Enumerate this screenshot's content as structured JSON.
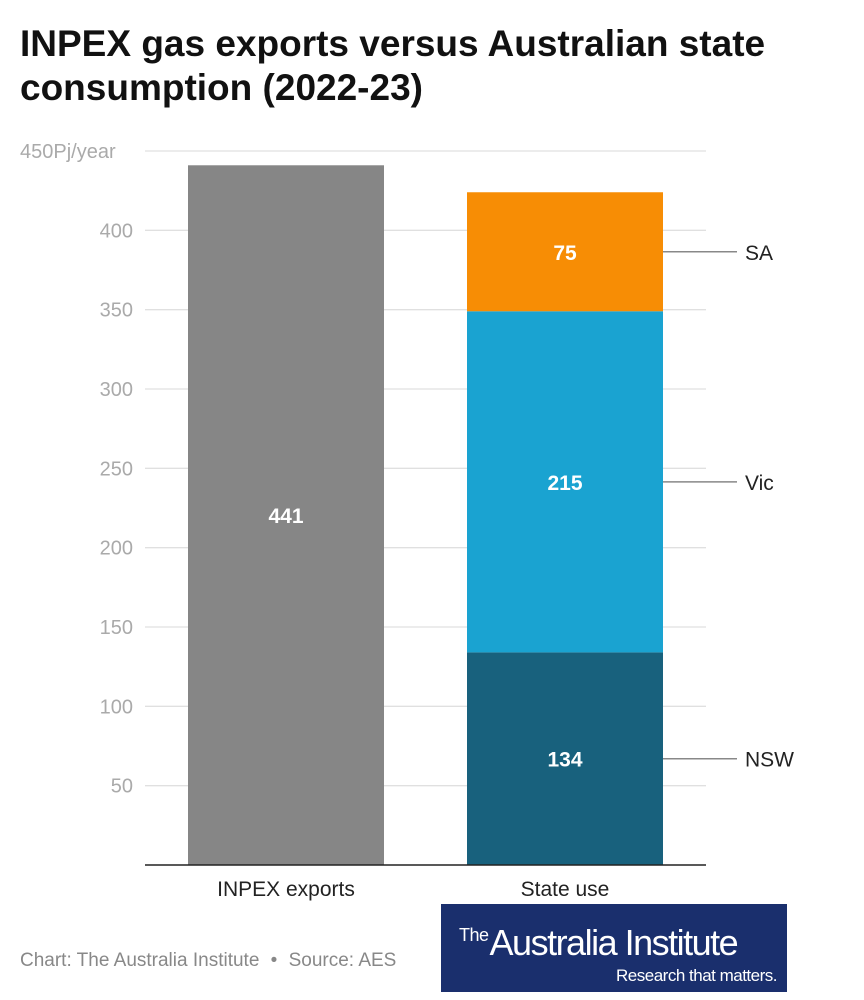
{
  "title": "INPEX gas exports versus Australian state consumption (2022-23)",
  "footer": {
    "chart_credit": "Chart: The Australia Institute",
    "separator": "•",
    "source": "Source: AES"
  },
  "logo": {
    "the": "The",
    "name": "Australia Institute",
    "tagline": "Research that matters.",
    "background_color": "#1a2f6d"
  },
  "chart_data": {
    "type": "bar",
    "stacked": true,
    "title": "INPEX gas exports versus Australian state consumption (2022-23)",
    "categories": [
      "INPEX exports",
      "State use"
    ],
    "ylim": [
      0,
      450
    ],
    "y_ticks": [
      50,
      100,
      150,
      200,
      250,
      300,
      350,
      400,
      450
    ],
    "y_tick_labels": [
      "50",
      "100",
      "150",
      "200",
      "250",
      "300",
      "350",
      "400",
      "450Pj/year"
    ],
    "grid": true,
    "series": [
      {
        "name": "",
        "category": "INPEX exports",
        "value": 441,
        "label": "441",
        "color": "#868686"
      },
      {
        "name": "NSW",
        "category": "State use",
        "value": 134,
        "label": "134",
        "color": "#18617d"
      },
      {
        "name": "Vic",
        "category": "State use",
        "value": 215,
        "label": "215",
        "color": "#1aa3d1"
      },
      {
        "name": "SA",
        "category": "State use",
        "value": 75,
        "label": "75",
        "color": "#f78d05"
      }
    ],
    "grid_color": "#e0e0e0",
    "tick_label_color": "#aaaaaa"
  }
}
